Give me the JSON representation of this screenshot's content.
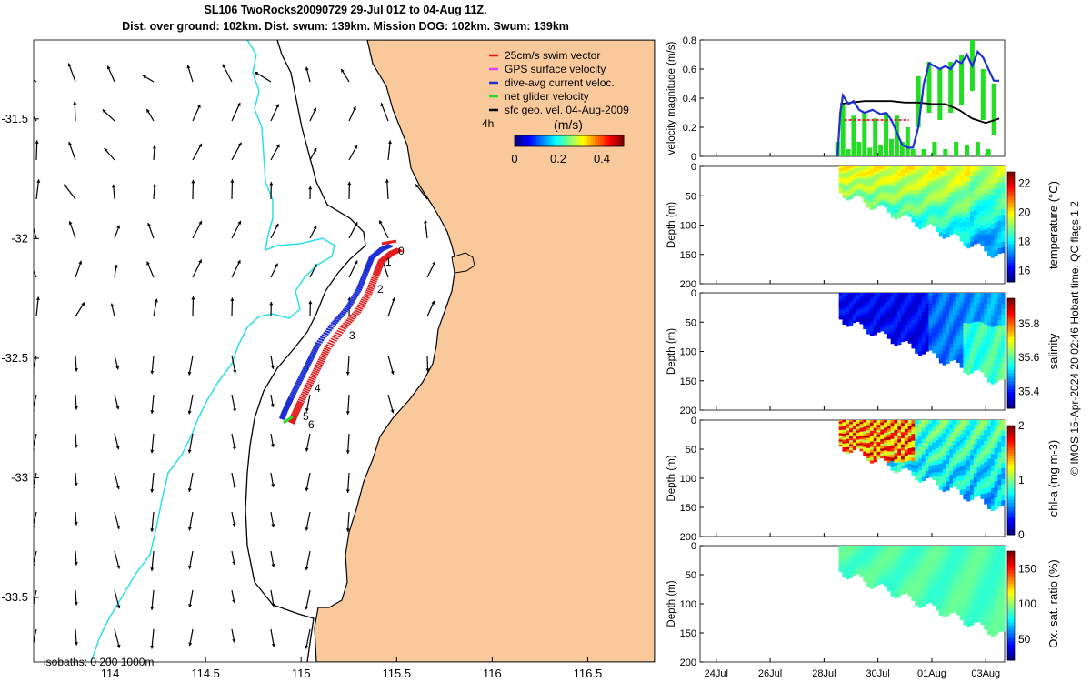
{
  "header": {
    "line1": "SL106 TwoRocks20090729 29-Jul 01Z to 04-Aug 11Z.",
    "line2": "Dist. over ground: 102km. Dist. swum: 139km. Mission DOG: 102km. Swum: 139km"
  },
  "credit": "© IMOS 15-Apr-2024 20:02:46 Hobart time. QC flags 1  2",
  "colors": {
    "land": "#f9c99b",
    "isobath_shallow": "#000000",
    "isobath_deep": "#29e0e8",
    "swim": "#e31a1c",
    "gps": "#e040fb",
    "dive_avg": "#1f2fd6",
    "net": "#22dd22",
    "sfc": "#000000"
  },
  "map": {
    "lon_ticks": [
      "114",
      "114.5",
      "115",
      "115.5",
      "116",
      "116.5"
    ],
    "lat_ticks": [
      "-31.5",
      "-32",
      "-32.5",
      "-33",
      "-33.5"
    ],
    "xlim": [
      113.6,
      116.85
    ],
    "ylim": [
      -33.77,
      -31.17
    ],
    "isobath_label": "isobaths: 0   200  1000m",
    "day_labels": [
      "0",
      "1",
      "2",
      "3",
      "4",
      "5",
      "6"
    ],
    "scale_label": "4h",
    "legend": [
      {
        "label": "25cm/s swim vector",
        "color": "#e31a1c"
      },
      {
        "label": "GPS surface velocity",
        "color": "#e040fb"
      },
      {
        "label": "dive-avg current veloc.",
        "color": "#1f2fd6"
      },
      {
        "label": "net glider velocity",
        "color": "#22dd22"
      },
      {
        "label": "sfc geo. vel. 04-Aug-2009",
        "color": "#000000"
      }
    ],
    "colorbar": {
      "unit": "(m/s)",
      "ticks": [
        "0",
        "0.2",
        "0.4"
      ],
      "range": [
        0,
        0.5
      ]
    }
  },
  "chart_data": [
    {
      "type": "line",
      "ylabel": "velocity magnitude (m/s)",
      "ylim": [
        0,
        0.8
      ],
      "yticks": [
        "0",
        "0.2",
        "0.4",
        "0.6",
        "0.8"
      ],
      "series": [
        {
          "name": "dive-avg current veloc.",
          "color": "#1f2fd6",
          "x": [
            28.5,
            28.6,
            28.7,
            28.9,
            29.1,
            29.3,
            29.5,
            29.8,
            30.1,
            30.3,
            30.5,
            30.9,
            31.1,
            31.3,
            31.5,
            31.7,
            31.9,
            32.1,
            32.3,
            32.5,
            32.7,
            32.9,
            33.1,
            33.3,
            33.5,
            33.7,
            33.9,
            34.1,
            34.3,
            34.5
          ],
          "y": [
            0.0,
            0.3,
            0.42,
            0.36,
            0.38,
            0.32,
            0.3,
            0.32,
            0.29,
            0.3,
            0.25,
            0.08,
            0.06,
            0.06,
            0.2,
            0.5,
            0.64,
            0.62,
            0.6,
            0.62,
            0.6,
            0.66,
            0.64,
            0.7,
            0.62,
            0.72,
            0.68,
            0.6,
            0.52,
            0.52
          ]
        },
        {
          "name": "sfc geo. vel.",
          "color": "#000000",
          "x": [
            28.6,
            29.0,
            29.5,
            30.0,
            30.5,
            31.0,
            31.5,
            32.0,
            32.5,
            33.0,
            33.5,
            34.0,
            34.5
          ],
          "y": [
            0.36,
            0.37,
            0.38,
            0.38,
            0.38,
            0.37,
            0.37,
            0.36,
            0.36,
            0.32,
            0.26,
            0.23,
            0.26
          ]
        },
        {
          "name": "swim",
          "color": "#e31a1c",
          "x": [
            28.75,
            31.15
          ],
          "y": [
            0.25,
            0.25
          ]
        },
        {
          "name": "net glider velocity",
          "color": "#22dd22",
          "x": [
            28.5,
            28.7,
            28.9,
            29.1,
            29.3,
            29.5,
            29.7,
            29.9,
            30.1,
            30.3,
            30.5,
            30.7,
            30.9,
            31.1,
            31.3,
            31.5,
            31.7,
            31.9,
            32.1,
            32.3,
            32.5,
            32.7,
            32.9,
            33.1,
            33.3,
            33.5,
            33.7,
            33.9,
            34.1,
            34.3
          ],
          "y": [
            0.1,
            0.35,
            0.05,
            0.28,
            0.1,
            0.3,
            0.06,
            0.26,
            0.08,
            0.3,
            0.12,
            0.28,
            0.1,
            0.2,
            0.05,
            0.55,
            0.05,
            0.65,
            0.1,
            0.6,
            0.05,
            0.65,
            0.1,
            0.7,
            0.08,
            0.8,
            0.1,
            0.6,
            0.05,
            0.5
          ]
        }
      ]
    },
    {
      "type": "heatmap",
      "ylabel": "Depth (m)",
      "clabel": "temperature (°C)",
      "yticks": [
        "0",
        "50",
        "100",
        "150",
        "200"
      ],
      "ylim": [
        0,
        200
      ],
      "cticks": [
        "16",
        "18",
        "20",
        "22"
      ],
      "clim": [
        15.2,
        22.8
      ]
    },
    {
      "type": "heatmap",
      "ylabel": "Depth (m)",
      "clabel": "salinity",
      "yticks": [
        "0",
        "50",
        "100",
        "150",
        "200"
      ],
      "ylim": [
        0,
        200
      ],
      "cticks": [
        "35.4",
        "35.6",
        "35.8"
      ],
      "clim": [
        35.3,
        35.95
      ]
    },
    {
      "type": "heatmap",
      "ylabel": "Depth (m)",
      "clabel": "chl-a (mg m-3)",
      "yticks": [
        "0",
        "50",
        "100",
        "150",
        "200"
      ],
      "ylim": [
        0,
        200
      ],
      "cticks": [
        "0",
        "1",
        "2"
      ],
      "clim": [
        0,
        2
      ]
    },
    {
      "type": "heatmap",
      "ylabel": "Depth (m)",
      "clabel": "Ox. sat. ratio (%)",
      "yticks": [
        "0",
        "50",
        "100",
        "150",
        "200"
      ],
      "ylim": [
        0,
        200
      ],
      "cticks": [
        "50",
        "100",
        "150"
      ],
      "clim": [
        20,
        175
      ]
    }
  ],
  "time_axis": {
    "ticks": [
      "24Jul",
      "26Jul",
      "28Jul",
      "30Jul",
      "01Aug",
      "03Aug"
    ],
    "xlim": [
      23.4,
      34.7
    ]
  }
}
